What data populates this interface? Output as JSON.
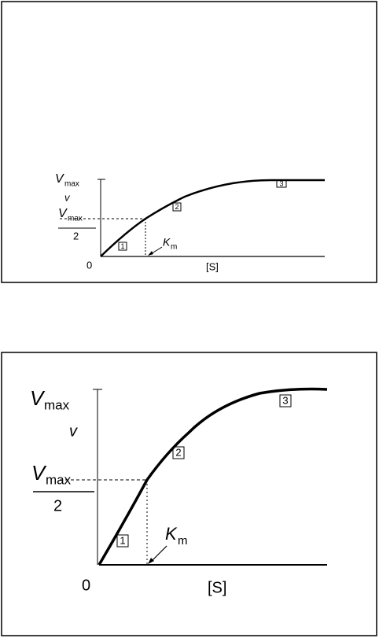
{
  "panels": [
    {
      "vmax_symbol": "V",
      "vmax_subscript": "max",
      "v": "v",
      "half_symbol": "V",
      "half_subscript": "max",
      "half_denominator": "2",
      "origin": "0",
      "km_symbol": "K",
      "km_subscript": "m",
      "x_label": "[S]",
      "regions": [
        "1",
        "2",
        "3"
      ]
    },
    {
      "vmax_symbol": "V",
      "vmax_subscript": "max",
      "v": "v",
      "half_symbol": "V",
      "half_subscript": "max",
      "half_denominator": "2",
      "origin": "0",
      "km_symbol": "K",
      "km_subscript": "m",
      "x_label": "[S]",
      "regions": [
        "1",
        "2",
        "3"
      ]
    }
  ]
}
